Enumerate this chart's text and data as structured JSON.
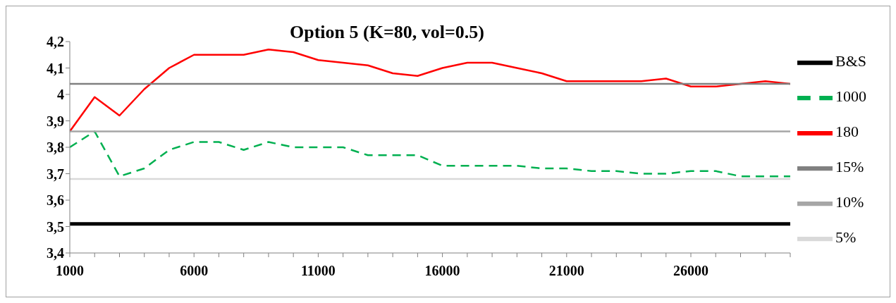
{
  "chart_data": {
    "type": "line",
    "title": "Option 5 (K=80, vol=0.5)",
    "x": [
      1000,
      2000,
      3000,
      4000,
      5000,
      6000,
      7000,
      8000,
      9000,
      10000,
      11000,
      12000,
      13000,
      14000,
      15000,
      16000,
      17000,
      18000,
      19000,
      20000,
      21000,
      22000,
      23000,
      24000,
      25000,
      26000,
      27000,
      28000,
      29000,
      30000
    ],
    "series": [
      {
        "name": "B&S",
        "color": "#000000",
        "line_style": "solid",
        "values": [
          3.51,
          3.51,
          3.51,
          3.51,
          3.51,
          3.51,
          3.51,
          3.51,
          3.51,
          3.51,
          3.51,
          3.51,
          3.51,
          3.51,
          3.51,
          3.51,
          3.51,
          3.51,
          3.51,
          3.51,
          3.51,
          3.51,
          3.51,
          3.51,
          3.51,
          3.51,
          3.51,
          3.51,
          3.51,
          3.51
        ]
      },
      {
        "name": "1000",
        "color": "#00b050",
        "line_style": "dashed",
        "values": [
          3.8,
          3.86,
          3.69,
          3.72,
          3.79,
          3.82,
          3.82,
          3.79,
          3.82,
          3.8,
          3.8,
          3.8,
          3.77,
          3.77,
          3.77,
          3.73,
          3.73,
          3.73,
          3.73,
          3.72,
          3.72,
          3.71,
          3.71,
          3.7,
          3.7,
          3.71,
          3.71,
          3.69,
          3.69,
          3.69
        ]
      },
      {
        "name": "180",
        "color": "#ff0000",
        "line_style": "solid",
        "values": [
          3.86,
          3.99,
          3.92,
          4.02,
          4.1,
          4.15,
          4.15,
          4.15,
          4.17,
          4.16,
          4.13,
          4.12,
          4.11,
          4.08,
          4.07,
          4.1,
          4.12,
          4.12,
          4.1,
          4.08,
          4.05,
          4.05,
          4.05,
          4.05,
          4.06,
          4.03,
          4.03,
          4.04,
          4.05,
          4.04
        ]
      },
      {
        "name": "15%",
        "color": "#808080",
        "line_style": "solid",
        "values": [
          4.04,
          4.04,
          4.04,
          4.04,
          4.04,
          4.04,
          4.04,
          4.04,
          4.04,
          4.04,
          4.04,
          4.04,
          4.04,
          4.04,
          4.04,
          4.04,
          4.04,
          4.04,
          4.04,
          4.04,
          4.04,
          4.04,
          4.04,
          4.04,
          4.04,
          4.04,
          4.04,
          4.04,
          4.04,
          4.04
        ]
      },
      {
        "name": "10%",
        "color": "#a6a6a6",
        "line_style": "solid",
        "values": [
          3.86,
          3.86,
          3.86,
          3.86,
          3.86,
          3.86,
          3.86,
          3.86,
          3.86,
          3.86,
          3.86,
          3.86,
          3.86,
          3.86,
          3.86,
          3.86,
          3.86,
          3.86,
          3.86,
          3.86,
          3.86,
          3.86,
          3.86,
          3.86,
          3.86,
          3.86,
          3.86,
          3.86,
          3.86,
          3.86
        ]
      },
      {
        "name": "5%",
        "color": "#d9d9d9",
        "line_style": "solid",
        "values": [
          3.68,
          3.68,
          3.68,
          3.68,
          3.68,
          3.68,
          3.68,
          3.68,
          3.68,
          3.68,
          3.68,
          3.68,
          3.68,
          3.68,
          3.68,
          3.68,
          3.68,
          3.68,
          3.68,
          3.68,
          3.68,
          3.68,
          3.68,
          3.68,
          3.68,
          3.68,
          3.68,
          3.68,
          3.68,
          3.68
        ]
      }
    ],
    "xlim": [
      1000,
      30000
    ],
    "xticks": [
      1000,
      {
        "value": 2000,
        "label": null
      },
      {
        "value": 3000,
        "label": null
      },
      {
        "value": 4000,
        "label": null
      },
      {
        "value": 5000,
        "label": null
      },
      6000,
      {
        "value": 7000,
        "label": null
      },
      {
        "value": 8000,
        "label": null
      },
      {
        "value": 9000,
        "label": null
      },
      {
        "value": 10000,
        "label": null
      },
      11000,
      {
        "value": 12000,
        "label": null
      },
      {
        "value": 13000,
        "label": null
      },
      {
        "value": 14000,
        "label": null
      },
      {
        "value": 15000,
        "label": null
      },
      16000,
      {
        "value": 17000,
        "label": null
      },
      {
        "value": 18000,
        "label": null
      },
      {
        "value": 19000,
        "label": null
      },
      {
        "value": 20000,
        "label": null
      },
      21000,
      {
        "value": 22000,
        "label": null
      },
      {
        "value": 23000,
        "label": null
      },
      {
        "value": 24000,
        "label": null
      },
      {
        "value": 25000,
        "label": null
      },
      26000,
      {
        "value": 27000,
        "label": null
      },
      {
        "value": 28000,
        "label": null
      },
      {
        "value": 29000,
        "label": null
      },
      {
        "value": 30000,
        "label": null
      }
    ],
    "ylim": [
      3.4,
      4.2
    ],
    "yticks": [
      {
        "value": 3.4,
        "label": "3,4"
      },
      {
        "value": 3.5,
        "label": "3,5"
      },
      {
        "value": 3.6,
        "label": "3,6"
      },
      {
        "value": 3.7,
        "label": "3,7"
      },
      {
        "value": 3.8,
        "label": "3,8"
      },
      {
        "value": 3.9,
        "label": "3,9"
      },
      4,
      {
        "value": 4.1,
        "label": "4,1"
      },
      {
        "value": 4.2,
        "label": "4,2"
      }
    ],
    "legend": "right",
    "marker": "none"
  }
}
